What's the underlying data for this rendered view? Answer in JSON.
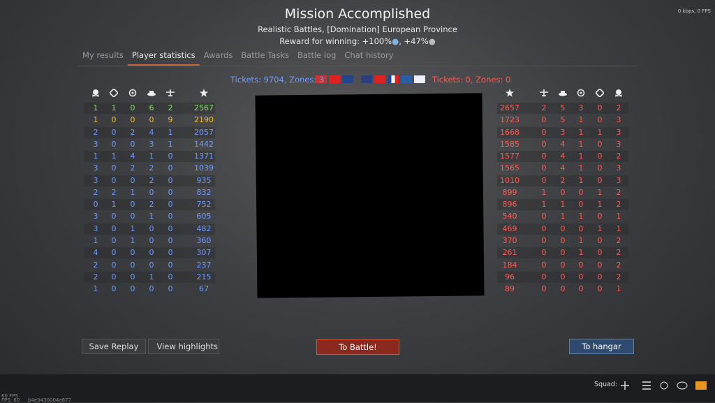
{
  "header": {
    "title": "Mission Accomplished",
    "mode": "Realistic Battles, [Domination] European Province",
    "reward": "Reward for winning: +100%",
    "reward_extra": ", +47%"
  },
  "tabs": [
    "My results",
    "Player statistics",
    "Awards",
    "Battle Tasks",
    "Battle log",
    "Chat history"
  ],
  "net": "0 kbps, 0 FPS",
  "teams": [
    {
      "tickets": "Tickets: 9704, Zones: 3",
      "rows": [
        [
          1,
          1,
          0,
          6,
          2,
          2567
        ],
        [
          1,
          0,
          0,
          0,
          9,
          2190
        ],
        [
          2,
          0,
          2,
          4,
          1,
          2057
        ],
        [
          3,
          0,
          0,
          3,
          1,
          1442
        ],
        [
          1,
          1,
          4,
          1,
          0,
          1371
        ],
        [
          3,
          0,
          2,
          2,
          0,
          1039
        ],
        [
          3,
          0,
          0,
          2,
          0,
          935
        ],
        [
          2,
          2,
          1,
          0,
          0,
          832
        ],
        [
          0,
          1,
          0,
          2,
          0,
          752
        ],
        [
          3,
          0,
          0,
          1,
          0,
          605
        ],
        [
          3,
          0,
          1,
          0,
          0,
          482
        ],
        [
          1,
          0,
          1,
          0,
          0,
          360
        ],
        [
          4,
          0,
          0,
          0,
          0,
          307
        ],
        [
          2,
          0,
          0,
          0,
          0,
          237
        ],
        [
          2,
          0,
          0,
          1,
          0,
          215
        ],
        [
          1,
          0,
          0,
          0,
          0,
          67
        ]
      ]
    },
    {
      "tickets": "Tickets: 0, Zones: 0",
      "rows": [
        [
          2657,
          2,
          5,
          3,
          0,
          2
        ],
        [
          1723,
          0,
          5,
          1,
          0,
          3
        ],
        [
          1668,
          0,
          3,
          1,
          1,
          3
        ],
        [
          1585,
          0,
          4,
          1,
          0,
          3
        ],
        [
          1577,
          0,
          4,
          1,
          0,
          2
        ],
        [
          1565,
          0,
          4,
          1,
          0,
          3
        ],
        [
          1010,
          0,
          2,
          1,
          0,
          3
        ],
        [
          899,
          1,
          0,
          0,
          1,
          2
        ],
        [
          896,
          1,
          1,
          0,
          1,
          2
        ],
        [
          540,
          0,
          1,
          1,
          0,
          1
        ],
        [
          469,
          0,
          0,
          0,
          1,
          1
        ],
        [
          370,
          0,
          0,
          1,
          0,
          2
        ],
        [
          261,
          0,
          0,
          1,
          0,
          2
        ],
        [
          184,
          0,
          0,
          0,
          0,
          2
        ],
        [
          96,
          0,
          0,
          0,
          0,
          2
        ],
        [
          89,
          0,
          0,
          0,
          0,
          1
        ]
      ]
    }
  ],
  "buttons": {
    "save_replay": "Save Replay",
    "highlights": "View highlights",
    "to_battle": "To Battle!",
    "to_hangar": "To hangar"
  },
  "squad": "Squad:",
  "debug": [
    "60 FPS",
    "FPS: 60",
    "b4e0430004e877"
  ]
}
